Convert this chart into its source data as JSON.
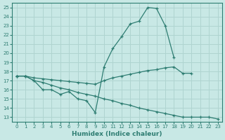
{
  "background_color": "#c8e8e5",
  "grid_color": "#afd4d0",
  "line_color": "#2e7d72",
  "marker": "+",
  "xlabel": "Humidex (Indice chaleur)",
  "xlim": [
    -0.5,
    23.5
  ],
  "ylim": [
    12.5,
    25.5
  ],
  "yticks": [
    13,
    14,
    15,
    16,
    17,
    18,
    19,
    20,
    21,
    22,
    23,
    24,
    25
  ],
  "xticks": [
    0,
    1,
    2,
    3,
    4,
    5,
    6,
    7,
    8,
    9,
    10,
    11,
    12,
    13,
    14,
    15,
    16,
    17,
    18,
    19,
    20,
    21,
    22,
    23
  ],
  "series": [
    {
      "x": [
        0,
        1,
        2,
        3,
        4,
        5,
        6,
        7,
        8,
        9,
        10,
        11,
        12,
        13,
        14,
        15,
        16,
        17,
        18
      ],
      "y": [
        17.5,
        17.5,
        17.0,
        16.0,
        16.0,
        15.5,
        15.8,
        15.0,
        14.8,
        13.5,
        18.5,
        20.5,
        21.8,
        23.2,
        23.5,
        25.0,
        24.9,
        23.0,
        19.5
      ]
    },
    {
      "x": [
        0,
        1,
        2,
        3,
        4,
        5,
        6,
        7,
        8,
        9,
        10,
        11,
        12,
        13,
        14,
        15,
        16,
        17,
        18,
        19,
        20,
        21,
        22,
        23
      ],
      "y": [
        17.5,
        17.5,
        17.3,
        17.2,
        17.1,
        17.0,
        16.9,
        16.8,
        16.7,
        16.6,
        17.0,
        17.3,
        17.5,
        17.7,
        17.9,
        18.1,
        18.2,
        18.4,
        18.5,
        17.8,
        17.8,
        null,
        null,
        null
      ]
    },
    {
      "x": [
        0,
        1,
        2,
        3,
        4,
        5,
        6,
        7,
        8,
        9,
        10,
        11,
        12,
        13,
        14,
        15,
        16,
        17,
        18,
        19,
        20,
        21,
        22,
        23
      ],
      "y": [
        17.5,
        17.5,
        17.0,
        16.8,
        16.5,
        16.2,
        16.0,
        15.7,
        15.5,
        15.3,
        15.0,
        14.8,
        14.5,
        14.3,
        14.0,
        13.8,
        13.6,
        13.4,
        13.2,
        13.0,
        13.0,
        13.0,
        13.0,
        12.8
      ]
    }
  ]
}
